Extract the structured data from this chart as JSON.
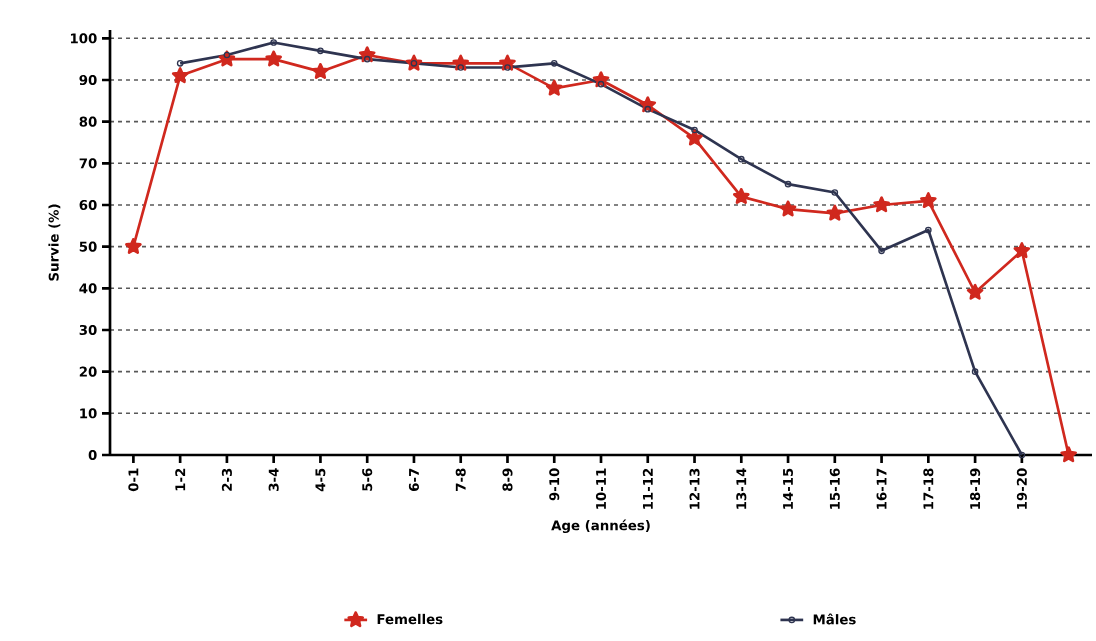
{
  "chart_data": {
    "type": "line",
    "xlabel": "Age (années)",
    "ylabel": "Survie (%)",
    "categories": [
      "0-1",
      "1-2",
      "2-3",
      "3-4",
      "4-5",
      "5-6",
      "6-7",
      "7-8",
      "8-9",
      "9-10",
      "10-11",
      "11-12",
      "12-13",
      "13-14",
      "14-15",
      "15-16",
      "16-17",
      "17-18",
      "18-19",
      "19-20",
      null
    ],
    "series": [
      {
        "name": "Femelles",
        "color": "#d0281e",
        "marker": "star",
        "values": [
          50,
          91,
          95,
          95,
          92,
          96,
          94,
          94,
          94,
          88,
          90,
          84,
          76,
          62,
          59,
          58,
          60,
          61,
          39,
          49,
          0
        ]
      },
      {
        "name": "Mâles",
        "color": "#2e3450",
        "marker": "circle",
        "values": [
          null,
          94,
          96,
          99,
          97,
          95,
          94,
          93,
          93,
          94,
          89,
          83,
          78,
          71,
          65,
          63,
          49,
          54,
          20,
          0,
          null
        ]
      }
    ],
    "ylim": [
      0,
      102
    ],
    "yticks": [
      0,
      10,
      20,
      30,
      40,
      50,
      60,
      70,
      80,
      90,
      100
    ],
    "grid": "y",
    "legend": "bottom"
  }
}
